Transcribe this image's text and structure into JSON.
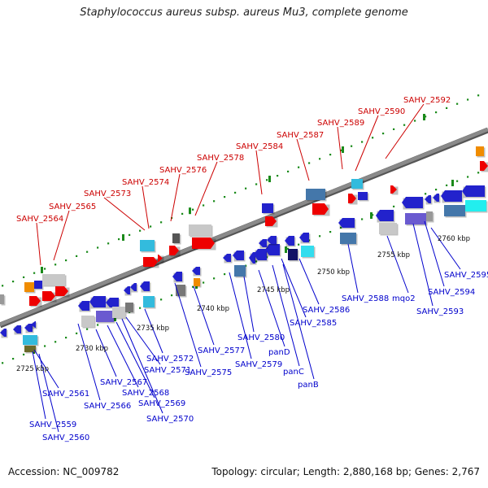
{
  "title": "Staphylococcus aureus subsp. aureus Mu3, complete genome",
  "footer": {
    "accession": "Accession: NC_009782",
    "summary": "Topology: circular; Length: 2,880,168 bp; Genes: 2,767"
  },
  "colors": {
    "backbone": "#8a8a8a",
    "tick": "#1a8a1a",
    "forward_label": "#cc0000",
    "reverse_label": "#0000cc"
  },
  "scale_labels": [
    "2725 kbp",
    "2730 kbp",
    "2735 kbp",
    "2740 kbp",
    "2745 kbp",
    "2750 kbp",
    "2755 kbp",
    "2760 kbp"
  ],
  "forward_genes": [
    "SAHV_2564",
    "SAHV_2565",
    "SAHV_2573",
    "SAHV_2574",
    "SAHV_2576",
    "SAHV_2578",
    "SAHV_2584",
    "SAHV_2587",
    "SAHV_2589",
    "SAHV_2590",
    "SAHV_2592"
  ],
  "reverse_genes": [
    "SAHV_2559",
    "SAHV_2560",
    "SAHV_2561",
    "SAHV_2566",
    "SAHV_2567",
    "SAHV_2568",
    "SAHV_2569",
    "SAHV_2570",
    "SAHV_2571",
    "SAHV_2572",
    "SAHV_2575",
    "SAHV_2577",
    "SAHV_2579",
    "SAHV_2580",
    "panD",
    "panC",
    "panB",
    "SAHV_2585",
    "SAHV_2586",
    "SAHV_2588",
    "mqo2",
    "SAHV_2593",
    "SAHV_2594",
    "SAHV_2595"
  ]
}
